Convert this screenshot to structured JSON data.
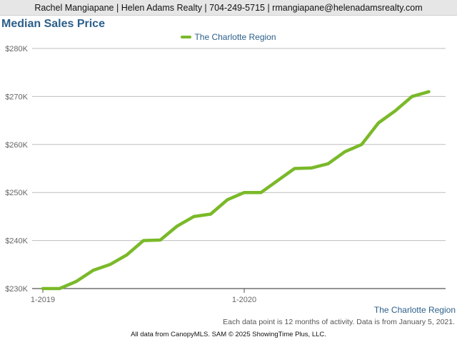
{
  "header": {
    "contact": "Rachel Mangiapane | Helen Adams Realty | 704-249-5715 | rmangiapane@helenadamsrealty.com"
  },
  "legend_label": "The Charlotte Region",
  "region_label": "The Charlotte Region",
  "note": "Each data point is 12 months of activity. Data is from January 5, 2021.",
  "footer": "All data from CanopyMLS. SAM © 2025 ShowingTime Plus, LLC.",
  "colors": {
    "series": "#7ab929",
    "title": "#2c5f8a",
    "grid": "#bdbdbd",
    "axis": "#555555"
  },
  "chart_data": {
    "type": "line",
    "title": "Median Sales Price",
    "ylim": [
      230000,
      280000
    ],
    "yticks": [
      230000,
      240000,
      250000,
      260000,
      270000,
      280000
    ],
    "ytick_labels": [
      "$230K",
      "$240K",
      "$250K",
      "$260K",
      "$270K",
      "$280K"
    ],
    "x_tick_labels": [
      {
        "label": "1-2019",
        "index": 0
      },
      {
        "label": "1-2020",
        "index": 12
      }
    ],
    "grid": true,
    "legend": "top-center",
    "series": [
      {
        "name": "The Charlotte Region",
        "x": [
          "1-2019",
          "2-2019",
          "3-2019",
          "4-2019",
          "5-2019",
          "6-2019",
          "7-2019",
          "8-2019",
          "9-2019",
          "10-2019",
          "11-2019",
          "12-2019",
          "1-2020",
          "2-2020",
          "3-2020",
          "4-2020",
          "5-2020",
          "6-2020",
          "7-2020",
          "8-2020",
          "9-2020",
          "10-2020",
          "11-2020",
          "12-2020"
        ],
        "values": [
          230000,
          230000,
          231500,
          233800,
          235000,
          237000,
          240000,
          240100,
          243000,
          245000,
          245500,
          248500,
          250000,
          250000,
          252500,
          255000,
          255100,
          256000,
          258500,
          260000,
          264500,
          267000,
          270000,
          271000
        ]
      }
    ]
  }
}
